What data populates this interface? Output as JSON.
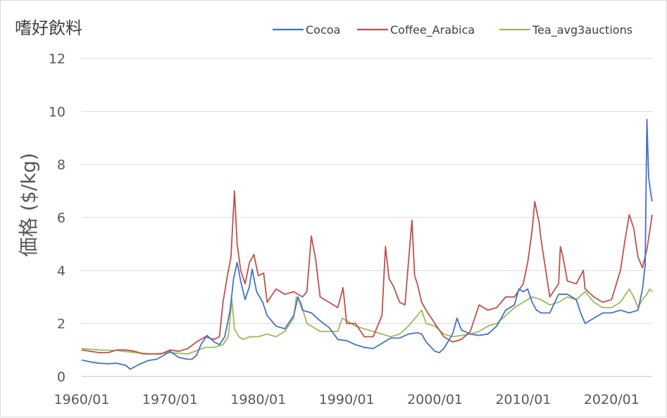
{
  "chart_data": {
    "type": "line",
    "title": "嗜好飲料",
    "xlabel": "",
    "ylabel": "価格 ($/kg)",
    "ylim": [
      0,
      12
    ],
    "y_ticks": [
      0,
      2,
      4,
      6,
      8,
      10,
      12
    ],
    "x_range": [
      1960.0,
      2024.6
    ],
    "x_tick_labels": [
      "1960/01",
      "1970/01",
      "1980/01",
      "1990/01",
      "2000/01",
      "2010/01",
      "2020/01"
    ],
    "x_tick_years": [
      1960,
      1970,
      1980,
      1990,
      2000,
      2010,
      2020
    ],
    "grid": "horizontal",
    "legend_position": "top-right",
    "series": [
      {
        "name": "Cocoa",
        "color": "#4472c4",
        "x": [
          1960.0,
          1961.0,
          1962.0,
          1963.0,
          1964.0,
          1965.0,
          1965.5,
          1966.5,
          1967.5,
          1968.5,
          1969.3,
          1970.0,
          1971.0,
          1972.0,
          1972.5,
          1973.0,
          1973.5,
          1974.2,
          1975.0,
          1975.6,
          1976.2,
          1976.8,
          1977.2,
          1977.6,
          1978.0,
          1978.5,
          1979.0,
          1979.3,
          1979.8,
          1980.5,
          1981.0,
          1982.0,
          1983.0,
          1984.0,
          1984.5,
          1985.0,
          1986.0,
          1987.0,
          1988.0,
          1989.0,
          1990.0,
          1991.0,
          1992.0,
          1993.0,
          1994.0,
          1995.0,
          1996.0,
          1997.0,
          1998.0,
          1998.5,
          1999.0,
          2000.0,
          2000.5,
          2001.0,
          2002.0,
          2002.5,
          2003.0,
          2004.0,
          2005.0,
          2006.0,
          2007.0,
          2008.0,
          2009.0,
          2009.5,
          2010.0,
          2010.5,
          2011.0,
          2011.5,
          2012.0,
          2013.0,
          2014.0,
          2015.0,
          2016.0,
          2016.5,
          2017.0,
          2018.0,
          2019.0,
          2020.0,
          2021.0,
          2022.0,
          2023.0,
          2023.5,
          2023.8,
          2024.0,
          2024.2,
          2024.4,
          2024.6
        ],
        "values": [
          0.62,
          0.55,
          0.5,
          0.48,
          0.5,
          0.42,
          0.28,
          0.45,
          0.6,
          0.65,
          0.8,
          0.95,
          0.72,
          0.65,
          0.65,
          0.8,
          1.2,
          1.55,
          1.3,
          1.2,
          1.5,
          2.5,
          3.7,
          4.3,
          3.6,
          2.9,
          3.4,
          4.05,
          3.2,
          2.8,
          2.3,
          1.9,
          1.8,
          2.3,
          3.0,
          2.5,
          2.4,
          2.1,
          1.85,
          1.4,
          1.35,
          1.2,
          1.1,
          1.05,
          1.25,
          1.45,
          1.45,
          1.6,
          1.65,
          1.6,
          1.3,
          0.95,
          0.9,
          1.05,
          1.6,
          2.2,
          1.75,
          1.6,
          1.55,
          1.6,
          1.9,
          2.5,
          2.7,
          3.3,
          3.2,
          3.3,
          2.8,
          2.5,
          2.4,
          2.4,
          3.1,
          3.1,
          2.9,
          2.4,
          2.0,
          2.2,
          2.4,
          2.4,
          2.5,
          2.4,
          2.5,
          3.3,
          4.2,
          9.7,
          7.5,
          7.0,
          6.6
        ]
      },
      {
        "name": "Coffee_Arabica",
        "color": "#c0504d",
        "x": [
          1960.0,
          1961.0,
          1962.0,
          1963.0,
          1964.0,
          1965.0,
          1966.0,
          1967.0,
          1968.0,
          1969.0,
          1970.0,
          1971.0,
          1972.0,
          1973.0,
          1974.0,
          1975.0,
          1975.6,
          1976.0,
          1976.5,
          1976.9,
          1977.3,
          1977.6,
          1978.0,
          1978.5,
          1979.0,
          1979.5,
          1980.0,
          1980.6,
          1981.0,
          1982.0,
          1983.0,
          1984.0,
          1985.0,
          1985.5,
          1986.0,
          1986.5,
          1987.0,
          1988.0,
          1989.0,
          1989.6,
          1990.0,
          1991.0,
          1992.0,
          1993.0,
          1994.0,
          1994.4,
          1994.8,
          1995.3,
          1996.0,
          1996.6,
          1997.0,
          1997.4,
          1997.7,
          1998.0,
          1998.5,
          1999.0,
          2000.0,
          2001.0,
          2002.0,
          2003.0,
          2004.0,
          2005.0,
          2006.0,
          2007.0,
          2008.0,
          2009.0,
          2010.0,
          2010.5,
          2011.0,
          2011.3,
          2011.8,
          2012.0,
          2013.0,
          2014.0,
          2014.2,
          2014.5,
          2015.0,
          2016.0,
          2016.8,
          2017.0,
          2018.0,
          2019.0,
          2020.0,
          2021.0,
          2021.5,
          2022.0,
          2022.5,
          2023.0,
          2023.5,
          2024.0,
          2024.6
        ],
        "values": [
          1.0,
          0.95,
          0.9,
          0.9,
          1.0,
          1.0,
          0.95,
          0.85,
          0.85,
          0.85,
          1.0,
          0.95,
          1.05,
          1.3,
          1.5,
          1.4,
          1.5,
          2.8,
          3.8,
          4.5,
          7.0,
          5.0,
          4.0,
          3.5,
          4.3,
          4.6,
          3.8,
          3.9,
          2.8,
          3.3,
          3.1,
          3.2,
          3.0,
          3.2,
          5.3,
          4.4,
          3.0,
          2.8,
          2.6,
          3.35,
          2.0,
          2.0,
          1.5,
          1.5,
          2.3,
          4.9,
          3.7,
          3.4,
          2.8,
          2.7,
          4.3,
          5.9,
          3.8,
          3.5,
          2.8,
          2.5,
          2.0,
          1.5,
          1.3,
          1.4,
          1.7,
          2.7,
          2.5,
          2.6,
          3.0,
          3.0,
          3.5,
          4.3,
          5.5,
          6.6,
          5.8,
          5.2,
          3.0,
          3.5,
          4.9,
          4.5,
          3.6,
          3.5,
          4.0,
          3.3,
          3.0,
          2.8,
          2.9,
          4.0,
          5.1,
          6.1,
          5.6,
          4.5,
          4.1,
          4.8,
          6.1
        ]
      },
      {
        "name": "Tea_avg3auctions",
        "color": "#9bbb59",
        "x": [
          1960.0,
          1962.0,
          1964.0,
          1966.0,
          1968.0,
          1970.0,
          1972.0,
          1974.0,
          1975.0,
          1976.0,
          1976.6,
          1977.0,
          1977.3,
          1977.8,
          1978.3,
          1979.0,
          1980.0,
          1981.0,
          1982.0,
          1983.0,
          1984.0,
          1984.3,
          1984.8,
          1985.5,
          1986.0,
          1987.0,
          1988.0,
          1989.0,
          1989.5,
          1990.0,
          1991.0,
          1992.0,
          1993.0,
          1994.0,
          1995.0,
          1996.0,
          1997.0,
          1998.0,
          1998.5,
          1999.0,
          2000.0,
          2001.0,
          2002.0,
          2003.0,
          2004.0,
          2005.0,
          2006.0,
          2007.0,
          2008.0,
          2009.0,
          2010.0,
          2011.0,
          2012.0,
          2013.0,
          2014.0,
          2015.0,
          2016.0,
          2017.0,
          2018.0,
          2019.0,
          2020.0,
          2021.0,
          2022.0,
          2022.5,
          2023.0,
          2023.5,
          2024.0,
          2024.3,
          2024.6
        ],
        "values": [
          1.05,
          1.0,
          0.98,
          0.9,
          0.85,
          0.9,
          0.85,
          1.1,
          1.1,
          1.2,
          1.5,
          2.9,
          1.8,
          1.5,
          1.4,
          1.5,
          1.5,
          1.6,
          1.5,
          1.7,
          2.2,
          3.0,
          2.8,
          2.0,
          1.9,
          1.7,
          1.7,
          1.7,
          2.2,
          2.1,
          1.9,
          1.8,
          1.7,
          1.6,
          1.5,
          1.6,
          1.9,
          2.3,
          2.5,
          2.0,
          1.9,
          1.6,
          1.5,
          1.55,
          1.6,
          1.7,
          1.9,
          2.0,
          2.3,
          2.6,
          2.8,
          3.0,
          2.9,
          2.7,
          2.8,
          3.0,
          2.9,
          3.2,
          2.8,
          2.6,
          2.6,
          2.8,
          3.3,
          3.0,
          2.6,
          2.9,
          3.1,
          3.3,
          3.2
        ]
      }
    ]
  }
}
